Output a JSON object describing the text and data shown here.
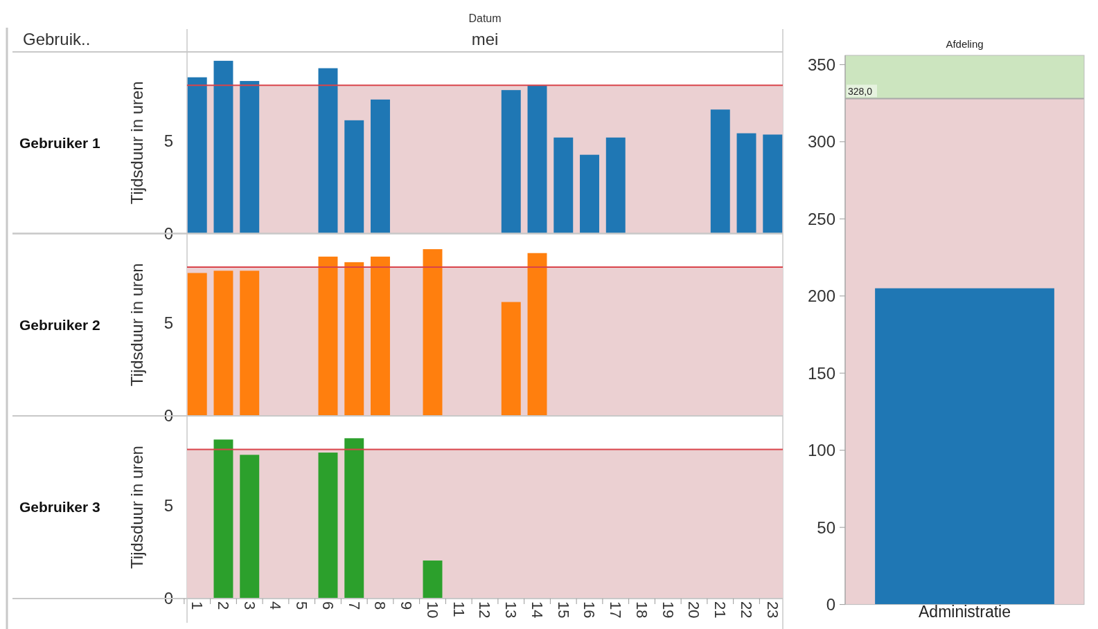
{
  "chart_data": [
    {
      "type": "bar",
      "title": "Gebruiker 1",
      "ylabel": "Tijdsduur in uren",
      "annotations": [
        "Gebruik..",
        "Datum",
        "mei"
      ],
      "tick_labels": "y",
      "categories": [
        "1",
        "2",
        "3",
        "4",
        "5",
        "6",
        "7",
        "8",
        "9",
        "10",
        "11",
        "12",
        "13",
        "14",
        "15",
        "16",
        "17",
        "18",
        "19",
        "20",
        "21",
        "22",
        "23"
      ],
      "values": [
        8.43,
        9.32,
        8.23,
        null,
        null,
        8.92,
        6.11,
        7.23,
        null,
        null,
        null,
        null,
        7.74,
        7.97,
        5.18,
        4.25,
        5.18,
        null,
        null,
        null,
        6.69,
        5.41,
        5.34
      ],
      "color": "#1f77b4",
      "ylim": [
        0,
        9.8
      ],
      "yticks": [
        0,
        5
      ],
      "bands": [
        {
          "axis": "y",
          "from": 0,
          "to": 8,
          "color": "#ebd0d2"
        }
      ],
      "ref_lines": [
        {
          "axis": "y",
          "value": 8,
          "color": "#d9434a"
        }
      ]
    },
    {
      "type": "bar",
      "title": "Gebruiker 2",
      "ylabel": "Tijdsduur in uren",
      "tick_labels": "y",
      "categories": [
        "1",
        "2",
        "3",
        "4",
        "5",
        "6",
        "7",
        "8",
        "9",
        "10",
        "11",
        "12",
        "13",
        "14",
        "15",
        "16",
        "17",
        "18",
        "19",
        "20",
        "21",
        "22",
        "23"
      ],
      "values": [
        7.68,
        7.8,
        7.8,
        null,
        null,
        8.56,
        8.26,
        8.56,
        null,
        8.96,
        null,
        null,
        6.12,
        8.75,
        null,
        null,
        null,
        null,
        null,
        null,
        null,
        null,
        null
      ],
      "color": "#ff7f0e",
      "ylim": [
        0,
        9.8
      ],
      "yticks": [
        0,
        5
      ],
      "bands": [
        {
          "axis": "y",
          "from": 0,
          "to": 8,
          "color": "#ebd0d2"
        }
      ],
      "ref_lines": [
        {
          "axis": "y",
          "value": 8,
          "color": "#d9434a"
        }
      ]
    },
    {
      "type": "bar",
      "title": "Gebruiker 3",
      "ylabel": "Tijdsduur in uren",
      "categories": [
        "1",
        "2",
        "3",
        "4",
        "5",
        "6",
        "7",
        "8",
        "9",
        "10",
        "11",
        "12",
        "13",
        "14",
        "15",
        "16",
        "17",
        "18",
        "19",
        "20",
        "21",
        "22",
        "23"
      ],
      "values": [
        null,
        8.53,
        7.71,
        null,
        null,
        7.83,
        8.6,
        null,
        null,
        2.04,
        null,
        null,
        null,
        null,
        null,
        null,
        null,
        null,
        null,
        null,
        null,
        null,
        null
      ],
      "color": "#2ca02c",
      "ylim": [
        0,
        9.8
      ],
      "yticks": [
        0,
        5
      ],
      "bands": [
        {
          "axis": "y",
          "from": 0,
          "to": 8,
          "color": "#ebd0d2"
        }
      ],
      "ref_lines": [
        {
          "axis": "y",
          "value": 8,
          "color": "#d9434a"
        }
      ]
    },
    {
      "type": "bar",
      "title": "Afdeling",
      "categories": [
        "Administratie"
      ],
      "values": [
        205
      ],
      "color": "#1f77b4",
      "ylim": [
        0,
        356
      ],
      "yticks": [
        0,
        50,
        100,
        150,
        200,
        250,
        300,
        350
      ],
      "bands": [
        {
          "axis": "y",
          "from": 0,
          "to": 328,
          "color": "#ebd0d2"
        },
        {
          "axis": "y",
          "from": 328,
          "to": 356,
          "color": "#cce5bf"
        }
      ],
      "ref_lines": [
        {
          "axis": "y",
          "value": 328,
          "label": "328,0",
          "color": "#a8a8a8"
        }
      ]
    }
  ]
}
